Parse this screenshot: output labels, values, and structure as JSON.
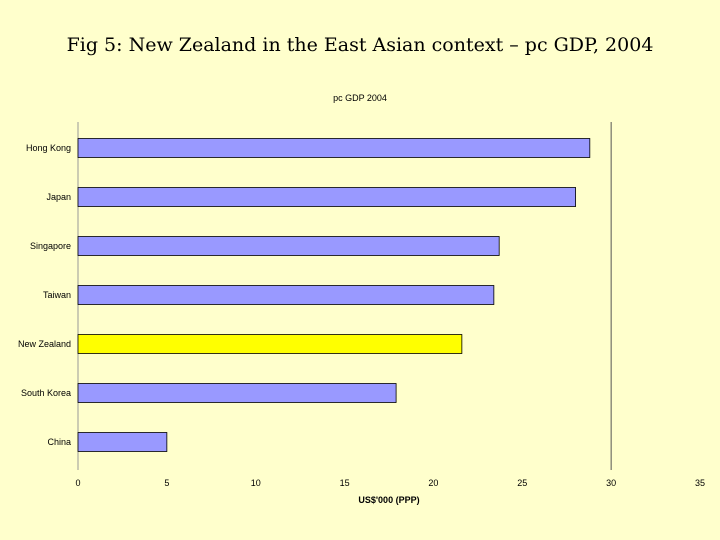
{
  "slide": {
    "title": "Fig 5: New Zealand in the East Asian context – pc GDP, 2004"
  },
  "chart_data": {
    "type": "bar",
    "orientation": "horizontal",
    "title": "pc GDP 2004",
    "xlabel": "US$'000 (PPP)",
    "ylabel": "",
    "categories": [
      "Hong Kong",
      "Japan",
      "Singapore",
      "Taiwan",
      "New Zealand",
      "South Korea",
      "China"
    ],
    "values": [
      28.8,
      28.0,
      23.7,
      23.4,
      21.6,
      17.9,
      5.0
    ],
    "xlim": [
      0,
      35
    ],
    "xticks": [
      "0",
      "5",
      "10",
      "15",
      "20",
      "25",
      "30",
      "35"
    ],
    "grid": false,
    "legend": "none",
    "colors": {
      "default_bar": "#9999ff",
      "highlight_bar": "#ffff00",
      "highlight_category": "New Zealand",
      "bar_edge": "#000000",
      "reference_line": "#555555"
    },
    "reference_line_x": 30
  }
}
